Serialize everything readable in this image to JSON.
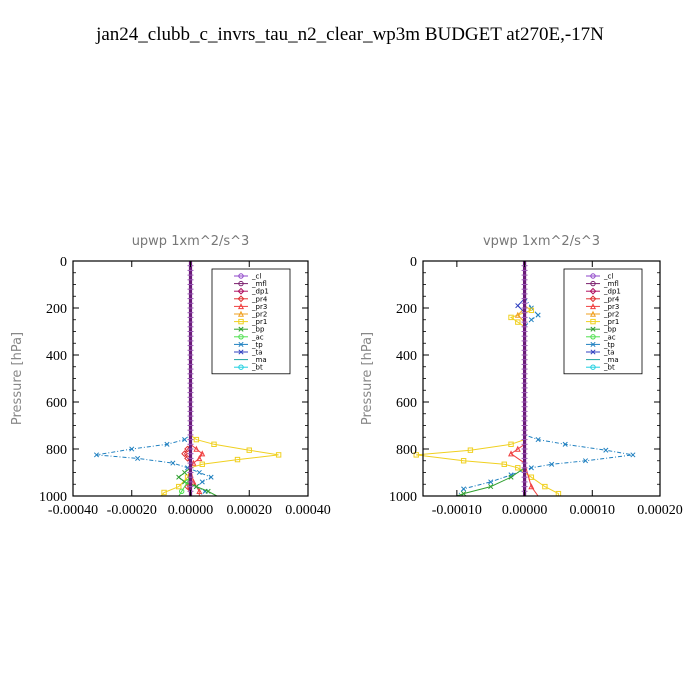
{
  "figure_title": "jan24_clubb_c_invrs_tau_n2_clear_wp3m  BUDGET at270E,-17N",
  "legend_entries": [
    {
      "name": "_cl",
      "color": "#8e44c8",
      "marker": "circle"
    },
    {
      "name": "_mfl",
      "color": "#7a1f6e",
      "marker": "circle"
    },
    {
      "name": "_dp1",
      "color": "#b01060",
      "marker": "diamond"
    },
    {
      "name": "_pr4",
      "color": "#e03030",
      "marker": "diamond"
    },
    {
      "name": "_pr3",
      "color": "#f04040",
      "marker": "triangle"
    },
    {
      "name": "_pr2",
      "color": "#f0a020",
      "marker": "triangle"
    },
    {
      "name": "_pr1",
      "color": "#f0d020",
      "marker": "square"
    },
    {
      "name": "_bp",
      "color": "#30a030",
      "marker": "cross"
    },
    {
      "name": "_ac",
      "color": "#50e050",
      "marker": "circle"
    },
    {
      "name": "_tp",
      "color": "#2080c0",
      "marker": "cross"
    },
    {
      "name": "_ta",
      "color": "#3040c0",
      "marker": "cross"
    },
    {
      "name": "_ma",
      "color": "#20a0a0",
      "marker": "line"
    },
    {
      "name": "_bt",
      "color": "#20d0e0",
      "marker": "circle"
    }
  ],
  "chart_data": [
    {
      "type": "line",
      "title": "upwp   1xm^2/s^3",
      "ylabel": "Pressure [hPa]",
      "xlabel": "",
      "xlim": [
        -0.0004,
        0.0004
      ],
      "ylim": [
        0,
        1000
      ],
      "y_inverted": true,
      "xticks": [
        "-0.00040",
        "-0.00020",
        "0.00000",
        "0.00020",
        "0.00040"
      ],
      "yticks": [
        "0",
        "200",
        "400",
        "600",
        "800",
        "1000"
      ],
      "legend_position": "top-right",
      "series": [
        {
          "name": "_tp",
          "points": [
            [
              0,
              0
            ],
            [
              0,
              600
            ],
            [
              0,
              740
            ],
            [
              -2e-05,
              760
            ],
            [
              -8e-05,
              780
            ],
            [
              -0.0002,
              800
            ],
            [
              -0.00032,
              825
            ],
            [
              -0.00018,
              840
            ],
            [
              -6e-05,
              860
            ],
            [
              -1e-05,
              880
            ],
            [
              3e-05,
              900
            ],
            [
              7e-05,
              920
            ],
            [
              4e-05,
              940
            ],
            [
              2e-05,
              960
            ],
            [
              5e-05,
              980
            ],
            [
              3e-05,
              1000
            ]
          ]
        },
        {
          "name": "_pr1",
          "points": [
            [
              0,
              0
            ],
            [
              0,
              230
            ],
            [
              0,
              250
            ],
            [
              0,
              740
            ],
            [
              2e-05,
              760
            ],
            [
              8e-05,
              780
            ],
            [
              0.0002,
              805
            ],
            [
              0.0003,
              825
            ],
            [
              0.00016,
              845
            ],
            [
              4e-05,
              865
            ],
            [
              0,
              880
            ],
            [
              -1e-05,
              920
            ],
            [
              -4e-05,
              960
            ],
            [
              -9e-05,
              985
            ],
            [
              -0.0001,
              1000
            ]
          ]
        },
        {
          "name": "_pr3",
          "points": [
            [
              0,
              0
            ],
            [
              0,
              780
            ],
            [
              2e-05,
              800
            ],
            [
              4e-05,
              820
            ],
            [
              3e-05,
              840
            ],
            [
              1e-05,
              860
            ],
            [
              0,
              880
            ],
            [
              1e-05,
              940
            ],
            [
              3e-05,
              980
            ],
            [
              3e-05,
              1000
            ]
          ]
        },
        {
          "name": "_pr4",
          "points": [
            [
              0,
              0
            ],
            [
              0,
              780
            ],
            [
              -1e-05,
              800
            ],
            [
              -2e-05,
              820
            ],
            [
              -1e-05,
              840
            ],
            [
              0,
              860
            ],
            [
              -1e-05,
              960
            ],
            [
              0,
              1000
            ]
          ]
        },
        {
          "name": "_bp",
          "points": [
            [
              0,
              0
            ],
            [
              0,
              880
            ],
            [
              -2e-05,
              900
            ],
            [
              -4e-05,
              920
            ],
            [
              -2e-05,
              940
            ],
            [
              2e-05,
              960
            ],
            [
              6e-05,
              980
            ],
            [
              9e-05,
              1000
            ]
          ]
        },
        {
          "name": "_ac",
          "points": [
            [
              0,
              0
            ],
            [
              0,
              900
            ],
            [
              -1e-05,
              940
            ],
            [
              -3e-05,
              980
            ],
            [
              -4e-05,
              1000
            ]
          ]
        },
        {
          "name": "_ta",
          "points": [
            [
              0,
              0
            ],
            [
              0,
              1000
            ]
          ]
        },
        {
          "name": "_ma",
          "points": [
            [
              0,
              0
            ],
            [
              0,
              1000
            ]
          ]
        },
        {
          "name": "_dp1",
          "points": [
            [
              0,
              0
            ],
            [
              0,
              1000
            ]
          ]
        },
        {
          "name": "_mfl",
          "points": [
            [
              0,
              0
            ],
            [
              0,
              1000
            ]
          ]
        },
        {
          "name": "_cl",
          "points": [
            [
              0,
              0
            ],
            [
              0,
              1000
            ]
          ]
        },
        {
          "name": "_bt",
          "points": [
            [
              0,
              0
            ],
            [
              0,
              1000
            ]
          ]
        }
      ]
    },
    {
      "type": "line",
      "title": "vpwp   1xm^2/s^3",
      "ylabel": "Pressure [hPa]",
      "xlabel": "",
      "xlim": [
        -0.00015,
        0.0002
      ],
      "ylim": [
        0,
        1000
      ],
      "y_inverted": true,
      "xticks": [
        "-0.00010",
        "0.00000",
        "0.00010",
        "0.00020"
      ],
      "xtick_values": [
        -0.0001,
        0,
        0.0001,
        0.0002
      ],
      "yticks": [
        "0",
        "200",
        "400",
        "600",
        "800",
        "1000"
      ],
      "legend_position": "top-right",
      "series": [
        {
          "name": "_tp",
          "points": [
            [
              0,
              0
            ],
            [
              0,
              150
            ],
            [
              1e-05,
              200
            ],
            [
              2e-05,
              230
            ],
            [
              1e-05,
              250
            ],
            [
              0,
              280
            ],
            [
              0,
              740
            ],
            [
              2e-05,
              760
            ],
            [
              6e-05,
              780
            ],
            [
              0.00012,
              805
            ],
            [
              0.00016,
              825
            ],
            [
              9e-05,
              850
            ],
            [
              4e-05,
              865
            ],
            [
              1e-05,
              880
            ],
            [
              -2e-05,
              910
            ],
            [
              -5e-05,
              940
            ],
            [
              -9e-05,
              970
            ],
            [
              -0.0001,
              1000
            ]
          ]
        },
        {
          "name": "_pr1",
          "points": [
            [
              0,
              0
            ],
            [
              0,
              160
            ],
            [
              0,
              190
            ],
            [
              1e-05,
              210
            ],
            [
              -2e-05,
              240
            ],
            [
              -1e-05,
              260
            ],
            [
              0,
              280
            ],
            [
              0,
              760
            ],
            [
              -2e-05,
              780
            ],
            [
              -8e-05,
              805
            ],
            [
              -0.00016,
              825
            ],
            [
              -9e-05,
              850
            ],
            [
              -3e-05,
              865
            ],
            [
              -1e-05,
              880
            ],
            [
              1e-05,
              920
            ],
            [
              3e-05,
              960
            ],
            [
              5e-05,
              990
            ],
            [
              5e-05,
              1000
            ]
          ]
        },
        {
          "name": "_pr2",
          "points": [
            [
              0,
              0
            ],
            [
              0,
              200
            ],
            [
              -1e-05,
              230
            ],
            [
              0,
              260
            ],
            [
              0,
              1000
            ]
          ]
        },
        {
          "name": "_pr3",
          "points": [
            [
              0,
              0
            ],
            [
              0,
              780
            ],
            [
              -1e-05,
              800
            ],
            [
              -2e-05,
              820
            ],
            [
              0,
              860
            ],
            [
              1e-05,
              960
            ],
            [
              2e-05,
              1000
            ]
          ]
        },
        {
          "name": "_bp",
          "points": [
            [
              0,
              0
            ],
            [
              0,
              880
            ],
            [
              -2e-05,
              920
            ],
            [
              -5e-05,
              960
            ],
            [
              -9e-05,
              990
            ],
            [
              -0.0001,
              1000
            ]
          ]
        },
        {
          "name": "_ta",
          "points": [
            [
              0,
              0
            ],
            [
              0,
              160
            ],
            [
              -1e-05,
              190
            ],
            [
              0,
              220
            ],
            [
              0,
              1000
            ]
          ]
        },
        {
          "name": "_ma",
          "points": [
            [
              0,
              0
            ],
            [
              0,
              1000
            ]
          ]
        },
        {
          "name": "_dp1",
          "points": [
            [
              0,
              0
            ],
            [
              0,
              1000
            ]
          ]
        },
        {
          "name": "_mfl",
          "points": [
            [
              0,
              0
            ],
            [
              0,
              1000
            ]
          ]
        },
        {
          "name": "_cl",
          "points": [
            [
              0,
              0
            ],
            [
              0,
              1000
            ]
          ]
        },
        {
          "name": "_bt",
          "points": [
            [
              0,
              0
            ],
            [
              0,
              1000
            ]
          ]
        }
      ]
    }
  ]
}
